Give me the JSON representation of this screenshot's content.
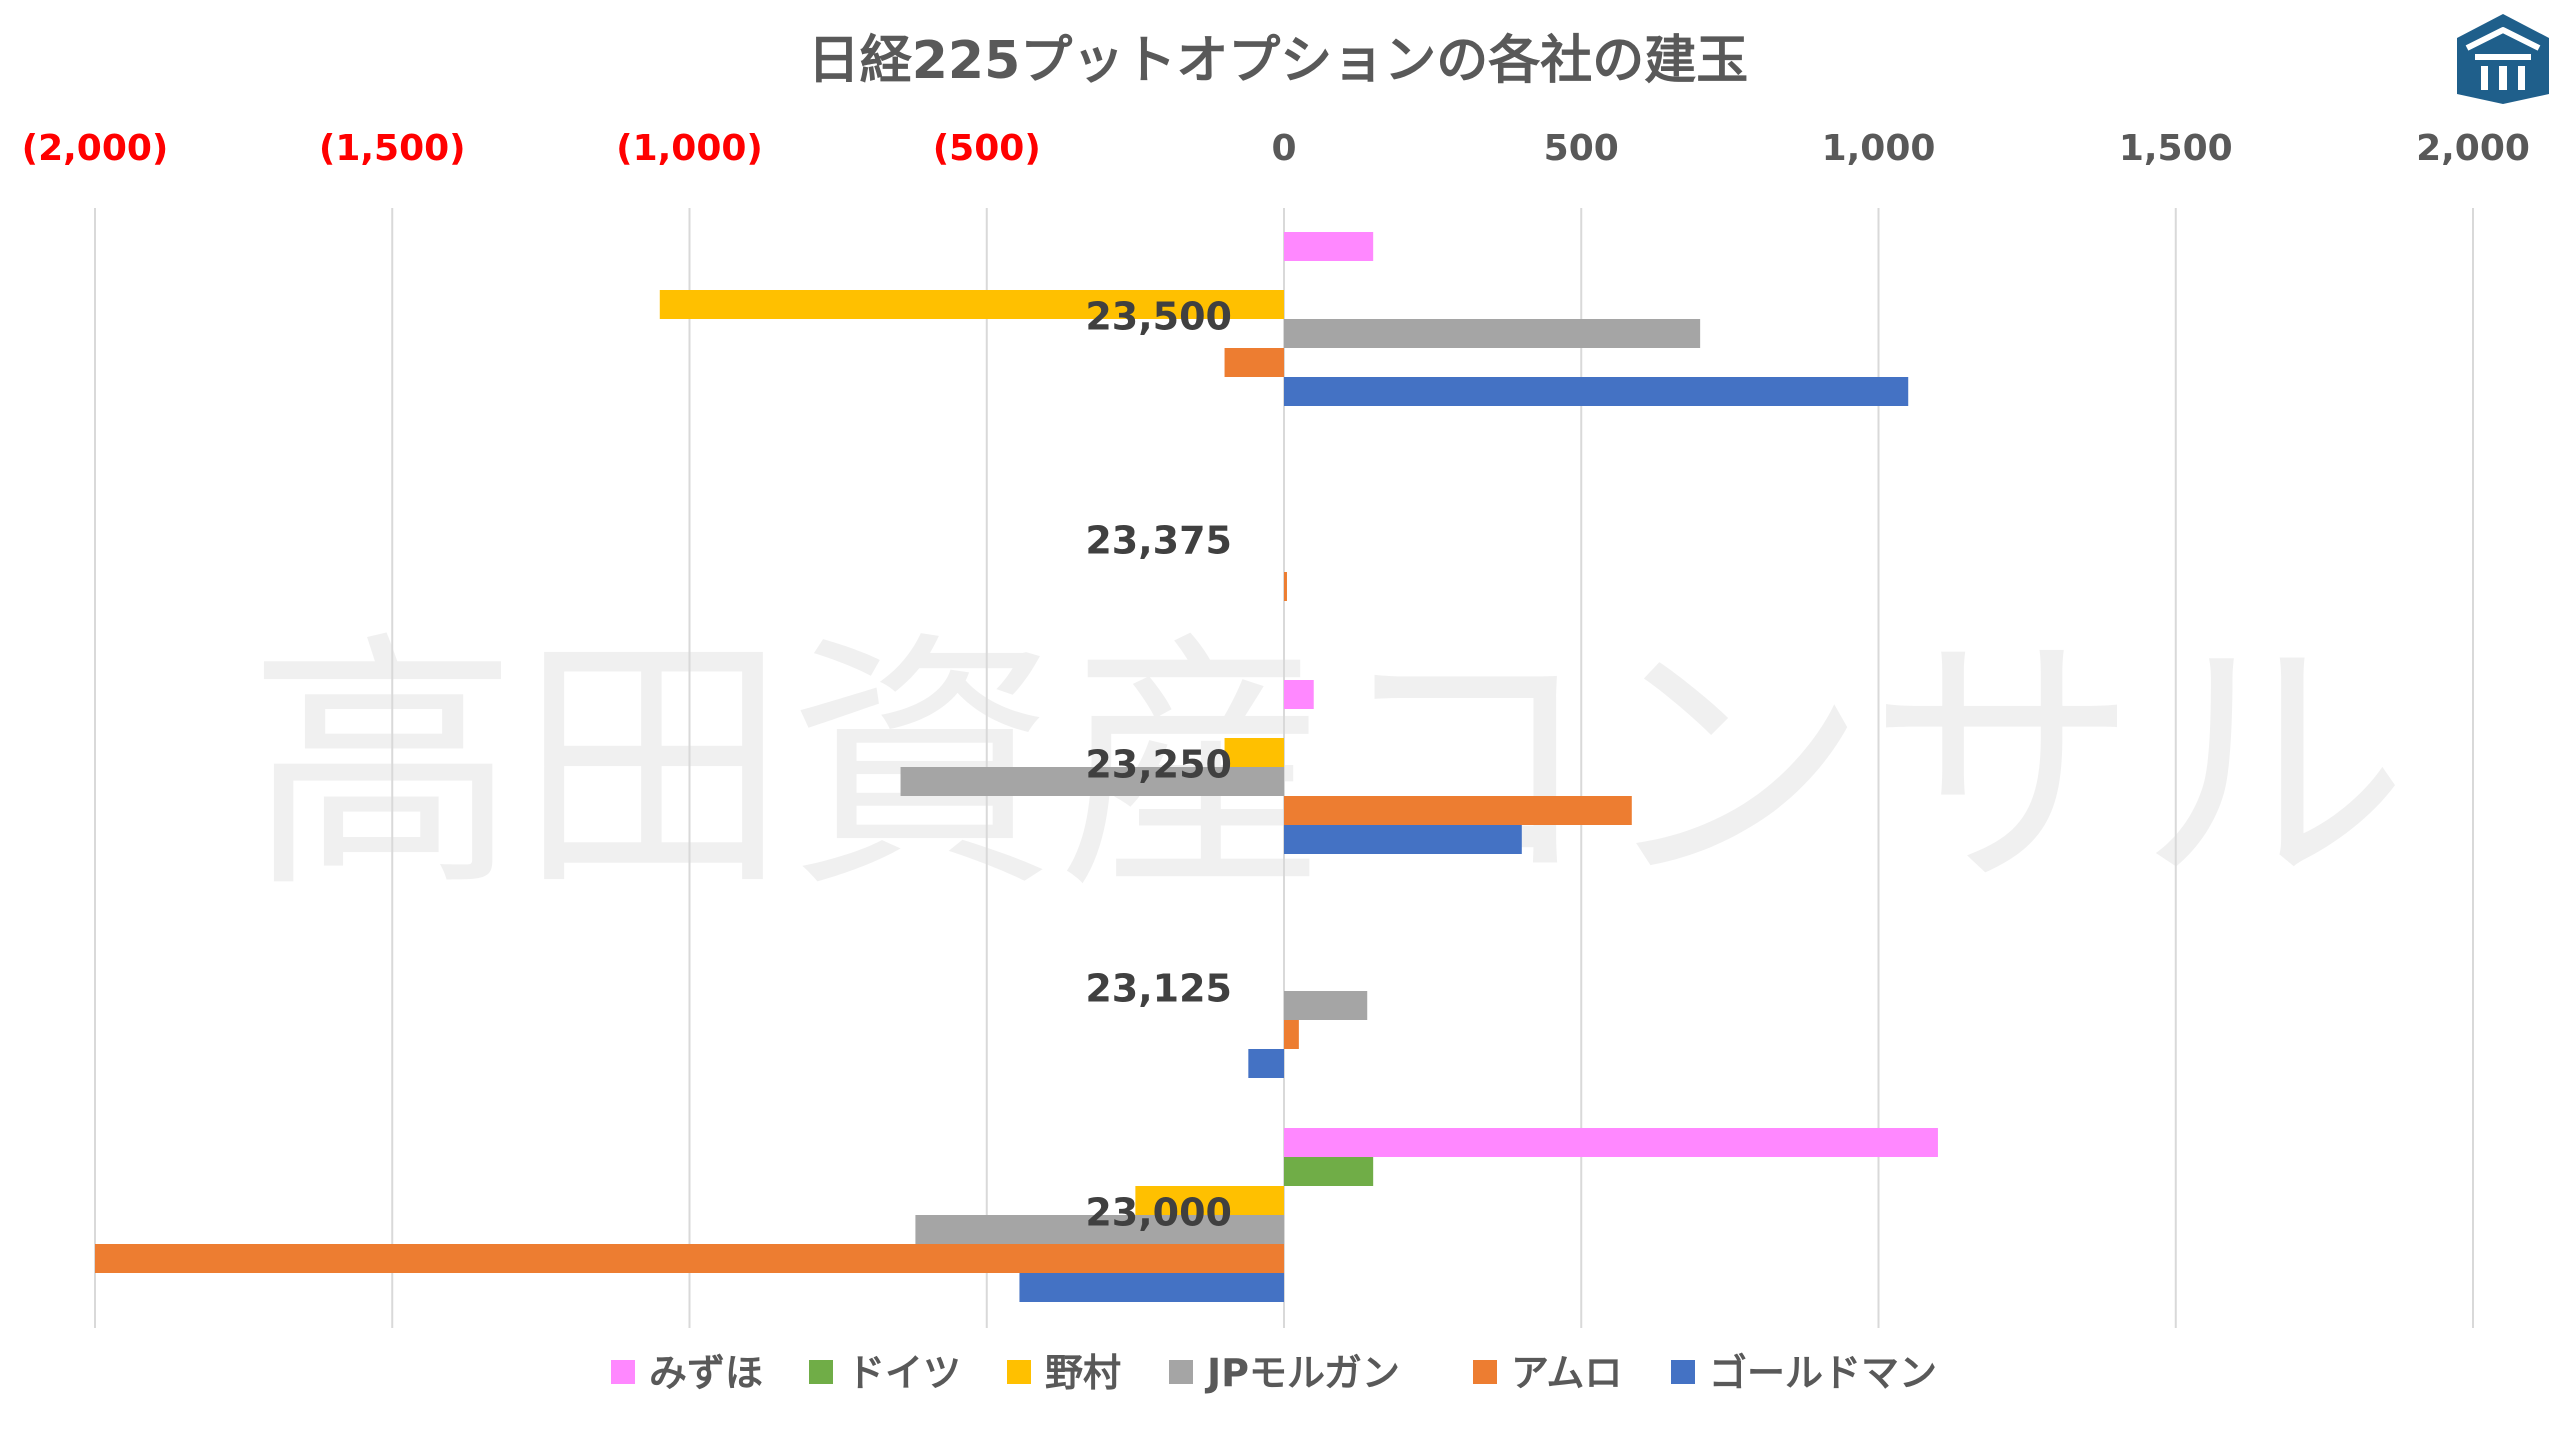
{
  "watermark": "高田資産コンサル",
  "colors": {
    "grid": "#d9d9d9",
    "tick_positive": "#595959",
    "tick_negative": "#ff0000",
    "logo": "#1f5f8b"
  },
  "logo": {
    "icon": "roof-house-logo-icon"
  },
  "chart_data": {
    "type": "bar",
    "orientation": "horizontal",
    "title": "日経225プットオプションの各社の建玉",
    "xlim": [
      -2000,
      2000
    ],
    "x_ticks": [
      {
        "value": -2000,
        "label": "(2,000)"
      },
      {
        "value": -1500,
        "label": "(1,500)"
      },
      {
        "value": -1000,
        "label": "(1,000)"
      },
      {
        "value": -500,
        "label": "(500)"
      },
      {
        "value": 0,
        "label": "0"
      },
      {
        "value": 500,
        "label": "500"
      },
      {
        "value": 1000,
        "label": "1,000"
      },
      {
        "value": 1500,
        "label": "1,500"
      },
      {
        "value": 2000,
        "label": "2,000"
      }
    ],
    "x_axis_position": "top",
    "grid": true,
    "legend_position": "bottom",
    "categories": [
      "23,500",
      "23,375",
      "23,250",
      "23,125",
      "23,000"
    ],
    "series": [
      {
        "name": "みずほ",
        "color": "#ff88ff",
        "values": [
          150,
          0,
          50,
          0,
          1100
        ]
      },
      {
        "name": "ドイツ",
        "color": "#70ad47",
        "values": [
          0,
          0,
          0,
          0,
          150
        ]
      },
      {
        "name": "野村",
        "color": "#ffc000",
        "values": [
          -1050,
          0,
          -100,
          0,
          -250
        ]
      },
      {
        "name": "JPモルガン",
        "color": "#a5a5a5",
        "values": [
          700,
          0,
          -645,
          140,
          -620
        ]
      },
      {
        "name": "アムロ",
        "color": "#ed7d31",
        "values": [
          -100,
          5,
          585,
          25,
          -2000
        ]
      },
      {
        "name": "ゴールドマン",
        "color": "#4472c4",
        "values": [
          1050,
          0,
          400,
          -60,
          -445
        ]
      }
    ]
  }
}
